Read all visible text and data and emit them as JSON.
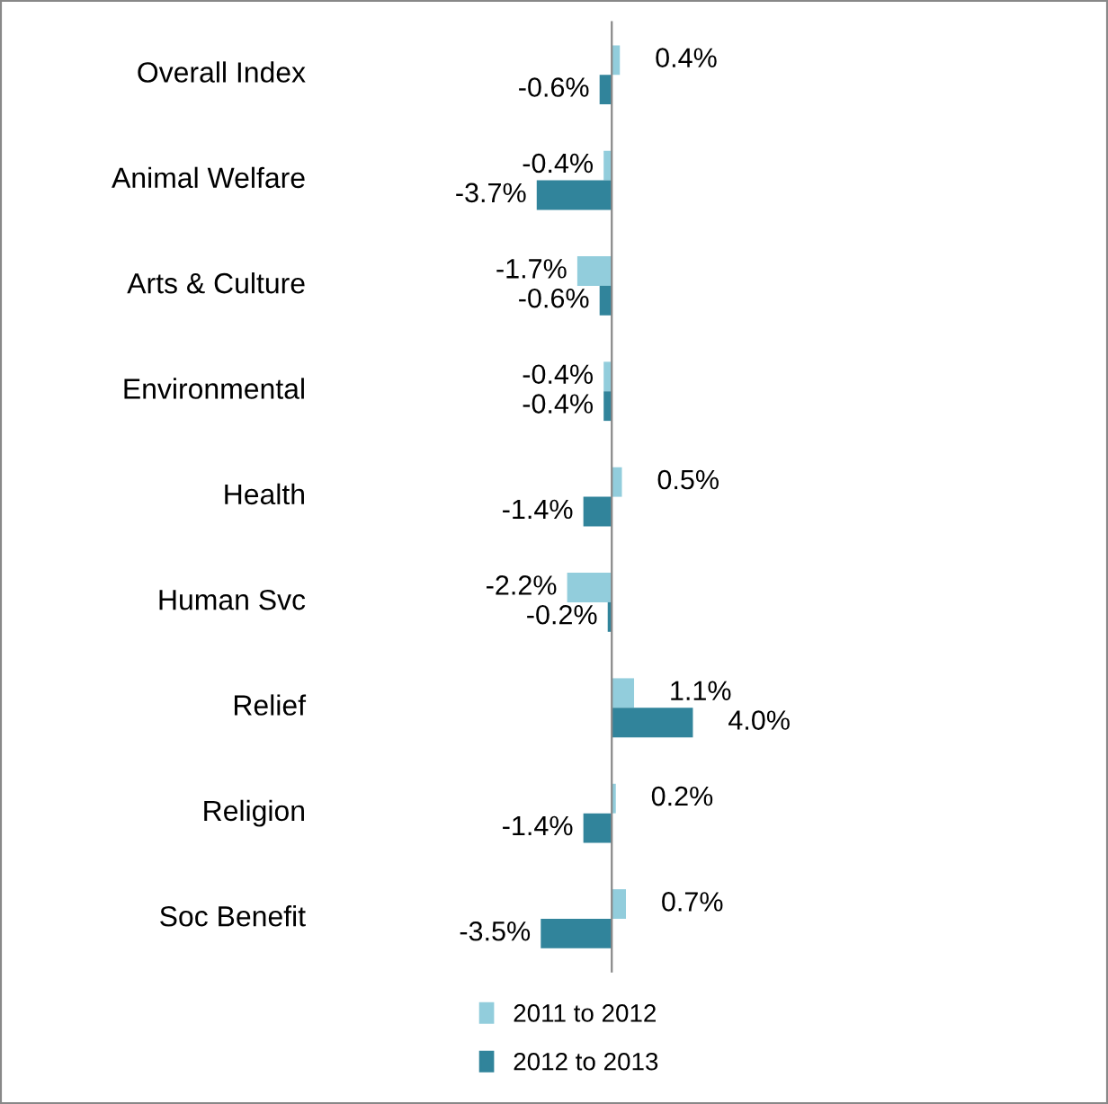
{
  "chart_data": {
    "type": "bar",
    "orientation": "horizontal",
    "categories": [
      "Overall Index",
      "Animal Welfare",
      "Arts & Culture",
      "Environmental",
      "Health",
      "Human Svc",
      "Relief",
      "Religion",
      "Soc Benefit"
    ],
    "series": [
      {
        "name": "2011 to 2012",
        "color": "#92cddc",
        "values": [
          0.4,
          -0.4,
          -1.7,
          -0.4,
          0.5,
          -2.2,
          1.1,
          0.2,
          0.7
        ],
        "value_labels": [
          "0.4%",
          "-0.4%",
          "-1.7%",
          "-0.4%",
          "0.5%",
          "-2.2%",
          "1.1%",
          "0.2%",
          "0.7%"
        ]
      },
      {
        "name": "2012 to 2013",
        "color": "#31849b",
        "values": [
          -0.6,
          -3.7,
          -0.6,
          -0.4,
          -1.4,
          -0.2,
          4.0,
          -1.4,
          -3.5
        ],
        "value_labels": [
          "-0.6%",
          "-3.7%",
          "-0.6%",
          "-0.4%",
          "-1.4%",
          "-0.2%",
          "4.0%",
          "-1.4%",
          "-3.5%"
        ]
      }
    ],
    "legend": "bottom"
  }
}
